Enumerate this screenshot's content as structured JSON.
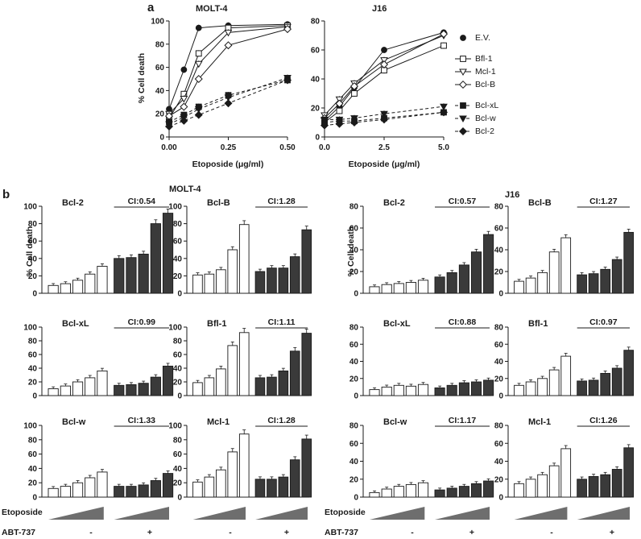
{
  "figure": {
    "panel_a": "a",
    "panel_b": "b",
    "ylabel": "% Cell death",
    "etoposide_label": "Etoposide",
    "abt_label": "ABT-737",
    "abt_minus": "-",
    "abt_plus": "+"
  },
  "colors": {
    "ink": "#1a1a1a",
    "bar_dark": "#3a3a3a",
    "wedge": "#6e6e6e"
  },
  "chart_data": {
    "line_charts": [
      {
        "type": "line",
        "title": "MOLT-4",
        "xlabel": "Etoposide (μg/ml)",
        "ylabel": "% Cell death",
        "x": [
          0,
          0.0625,
          0.125,
          0.25,
          0.5
        ],
        "xticks": [
          "0.00",
          "0.25",
          "0.50"
        ],
        "xtick_values": [
          0,
          0.25,
          0.5
        ],
        "xlim": [
          0,
          0.5
        ],
        "ylim": [
          0,
          100
        ],
        "yticks": [
          0,
          20,
          40,
          60,
          80,
          100
        ],
        "series": [
          {
            "name": "E.V.",
            "marker": "circle-filled",
            "dash": false,
            "values": [
              24,
              58,
              94,
              96,
              97
            ]
          },
          {
            "name": "Bfl-1",
            "marker": "square-open",
            "dash": false,
            "values": [
              16,
              37,
              72,
              94,
              96
            ]
          },
          {
            "name": "Mcl-1",
            "marker": "tri-down-open",
            "dash": false,
            "values": [
              20,
              33,
              63,
              90,
              95
            ]
          },
          {
            "name": "Bcl-B",
            "marker": "diamond-open",
            "dash": false,
            "values": [
              18,
              26,
              50,
              79,
              93
            ]
          },
          {
            "name": "Bcl-xL",
            "marker": "square-filled",
            "dash": true,
            "values": [
              13,
              19,
              26,
              36,
              49
            ]
          },
          {
            "name": "Bcl-w",
            "marker": "tri-down-filled",
            "dash": true,
            "values": [
              11,
              17,
              24,
              34,
              51
            ]
          },
          {
            "name": "Bcl-2",
            "marker": "diamond-filled",
            "dash": true,
            "values": [
              9,
              14,
              19,
              29,
              49
            ]
          }
        ]
      },
      {
        "type": "line",
        "title": "J16",
        "xlabel": "Etoposide (μg/ml)",
        "ylabel": "",
        "x": [
          0,
          0.625,
          1.25,
          2.5,
          5
        ],
        "xticks": [
          "0.0",
          "2.5",
          "5.0"
        ],
        "xtick_values": [
          0,
          2.5,
          5
        ],
        "xlim": [
          0,
          5
        ],
        "ylim": [
          0,
          80
        ],
        "yticks": [
          0,
          20,
          40,
          60,
          80
        ],
        "series": [
          {
            "name": "E.V.",
            "marker": "circle-filled",
            "dash": false,
            "values": [
              11,
              21,
              34,
              60,
              72
            ]
          },
          {
            "name": "Bfl-1",
            "marker": "square-open",
            "dash": false,
            "values": [
              10,
              18,
              30,
              46,
              63
            ]
          },
          {
            "name": "Mcl-1",
            "marker": "tri-down-open",
            "dash": false,
            "values": [
              15,
              26,
              37,
              53,
              70
            ]
          },
          {
            "name": "Bcl-B",
            "marker": "diamond-open",
            "dash": false,
            "values": [
              13,
              23,
              35,
              50,
              71
            ]
          },
          {
            "name": "Bcl-xL",
            "marker": "square-filled",
            "dash": true,
            "values": [
              10,
              11,
              11,
              13,
              17
            ]
          },
          {
            "name": "Bcl-w",
            "marker": "tri-down-filled",
            "dash": true,
            "values": [
              12,
              12,
              13,
              16,
              21
            ]
          },
          {
            "name": "Bcl-2",
            "marker": "diamond-filled",
            "dash": true,
            "values": [
              8,
              9,
              10,
              12,
              17
            ]
          }
        ]
      }
    ],
    "bar_groups": [
      {
        "cell_line": "MOLT-4",
        "ylim": [
          0,
          100
        ],
        "yticks": [
          0,
          20,
          40,
          60,
          80,
          100
        ],
        "panels": [
          {
            "name": "Bcl-2",
            "ci": "CI:0.54",
            "minus": [
              9,
              11,
              15,
              22,
              31
            ],
            "plus": [
              40,
              41,
              45,
              80,
              92
            ]
          },
          {
            "name": "Bcl-B",
            "ci": "CI:1.28",
            "minus": [
              21,
              22,
              27,
              50,
              79
            ],
            "plus": [
              25,
              29,
              29,
              42,
              73
            ]
          },
          {
            "name": "Bcl-xL",
            "ci": "CI:0.99",
            "minus": [
              10,
              14,
              20,
              26,
              36
            ],
            "plus": [
              15,
              16,
              18,
              27,
              43
            ]
          },
          {
            "name": "Bfl-1",
            "ci": "CI:1.11",
            "minus": [
              19,
              26,
              39,
              73,
              92
            ],
            "plus": [
              26,
              27,
              36,
              65,
              91
            ]
          },
          {
            "name": "Bcl-w",
            "ci": "CI:1.33",
            "minus": [
              12,
              15,
              20,
              27,
              35
            ],
            "plus": [
              15,
              15,
              17,
              23,
              33
            ]
          },
          {
            "name": "Mcl-1",
            "ci": "CI:1.28",
            "minus": [
              21,
              28,
              38,
              63,
              88
            ],
            "plus": [
              25,
              25,
              28,
              52,
              81
            ]
          }
        ]
      },
      {
        "cell_line": "J16",
        "ylim": [
          0,
          80
        ],
        "yticks": [
          0,
          20,
          40,
          60,
          80
        ],
        "panels": [
          {
            "name": "Bcl-2",
            "ci": "CI:0.57",
            "minus": [
              6,
              8,
              9,
              10,
              12
            ],
            "plus": [
              15,
              19,
              26,
              38,
              54
            ]
          },
          {
            "name": "Bcl-B",
            "ci": "CI:1.27",
            "minus": [
              11,
              14,
              19,
              38,
              51
            ],
            "plus": [
              17,
              18,
              22,
              31,
              56
            ]
          },
          {
            "name": "Bcl-xL",
            "ci": "CI:0.88",
            "minus": [
              7,
              10,
              12,
              11,
              13
            ],
            "plus": [
              9,
              12,
              15,
              16,
              18
            ]
          },
          {
            "name": "Bfl-1",
            "ci": "CI:0.97",
            "minus": [
              12,
              16,
              20,
              30,
              46
            ],
            "plus": [
              17,
              18,
              26,
              32,
              53
            ]
          },
          {
            "name": "Bcl-w",
            "ci": "CI:1.17",
            "minus": [
              5,
              9,
              12,
              14,
              16
            ],
            "plus": [
              8,
              10,
              12,
              15,
              18
            ]
          },
          {
            "name": "Mcl-1",
            "ci": "CI:1.26",
            "minus": [
              15,
              20,
              25,
              35,
              54
            ],
            "plus": [
              20,
              23,
              25,
              31,
              55
            ]
          }
        ]
      }
    ]
  }
}
